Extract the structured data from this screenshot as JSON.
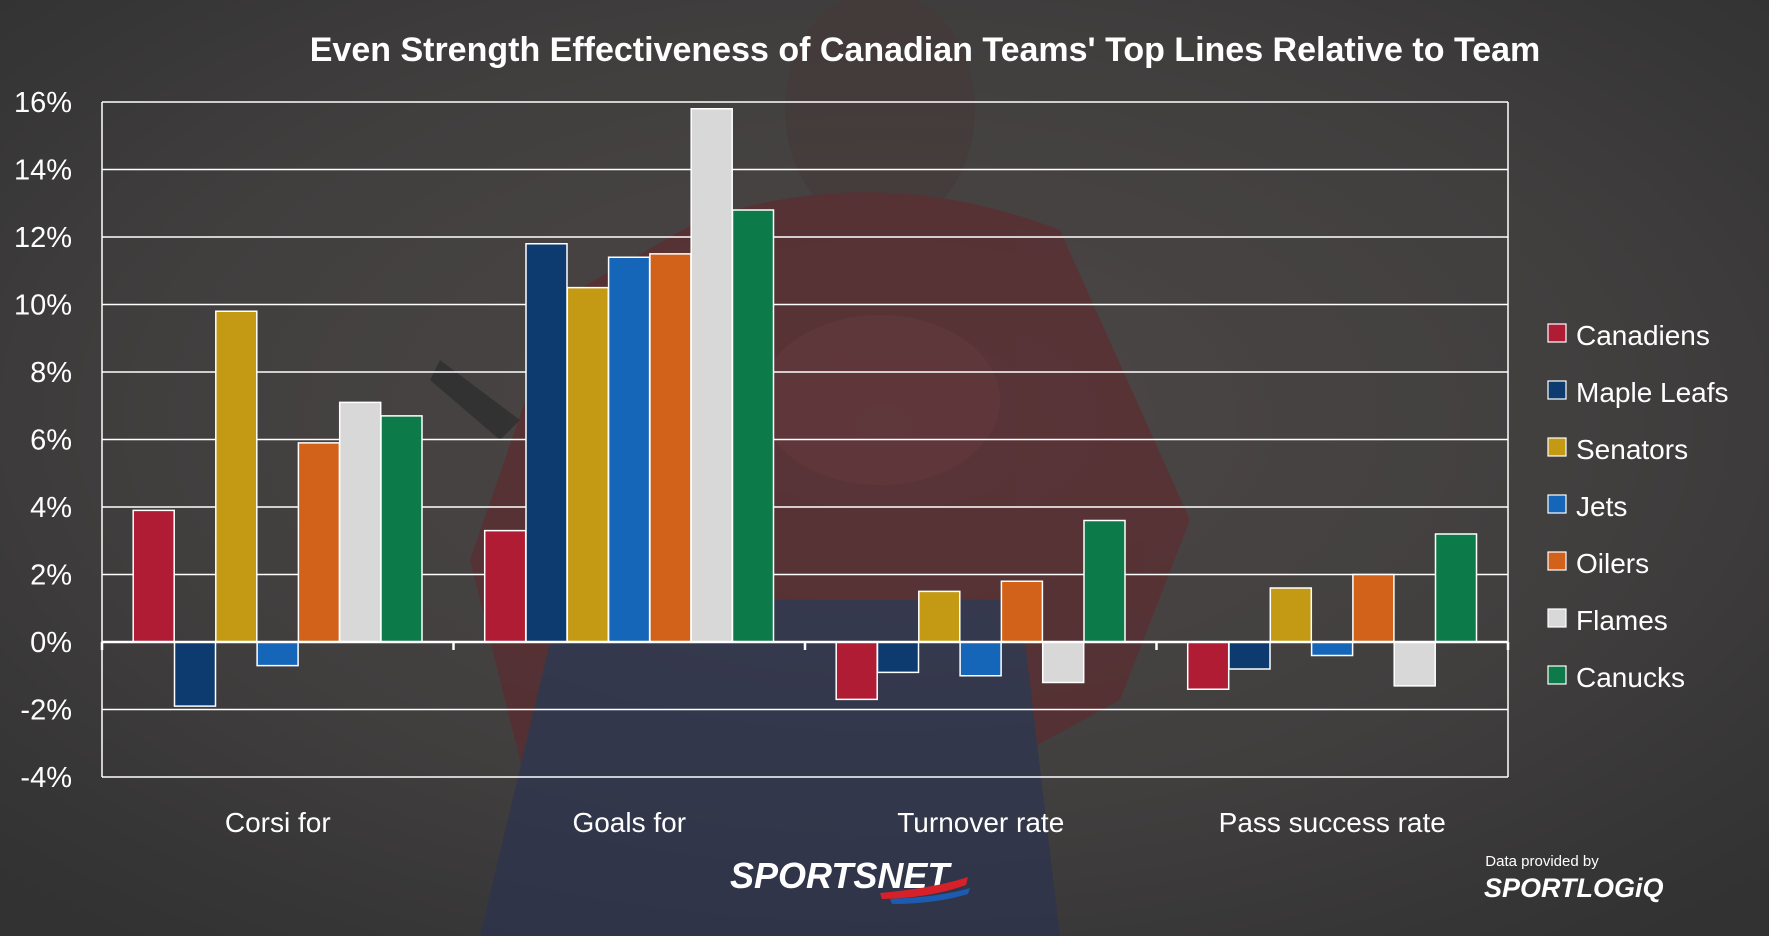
{
  "branding": {
    "broadcaster": "SPORTSNET",
    "credit_prefix": "Data provided by",
    "data_provider": "SPORTLOGiQ"
  },
  "chart_data": {
    "type": "bar",
    "title": "Even Strength Effectiveness of Canadian Teams' Top Lines Relative to Team",
    "xlabel": "",
    "ylabel": "",
    "ylim": [
      -4,
      16
    ],
    "yticks": [
      -4,
      -2,
      0,
      2,
      4,
      6,
      8,
      10,
      12,
      14,
      16
    ],
    "ytick_suffix": "%",
    "grid": true,
    "legend_position": "right",
    "categories": [
      "Corsi for",
      "Goals for",
      "Turnover rate",
      "Pass success rate"
    ],
    "series": [
      {
        "name": "Canadiens",
        "color": "#b01c33",
        "values": [
          3.9,
          3.3,
          -1.7,
          -1.4
        ]
      },
      {
        "name": "Maple Leafs",
        "color": "#0d3b70",
        "values": [
          -1.9,
          11.8,
          -0.9,
          -0.8
        ]
      },
      {
        "name": "Senators",
        "color": "#c49a14",
        "values": [
          9.8,
          10.5,
          1.5,
          1.6
        ]
      },
      {
        "name": "Jets",
        "color": "#1565b8",
        "values": [
          -0.7,
          11.4,
          -1.0,
          -0.4
        ]
      },
      {
        "name": "Oilers",
        "color": "#d2621a",
        "values": [
          5.9,
          11.5,
          1.8,
          2.0
        ]
      },
      {
        "name": "Flames",
        "color": "#d8d8d8",
        "values": [
          7.1,
          15.8,
          -1.2,
          -1.3
        ]
      },
      {
        "name": "Canucks",
        "color": "#0c7a49",
        "values": [
          6.7,
          12.8,
          3.6,
          3.2
        ]
      }
    ]
  }
}
